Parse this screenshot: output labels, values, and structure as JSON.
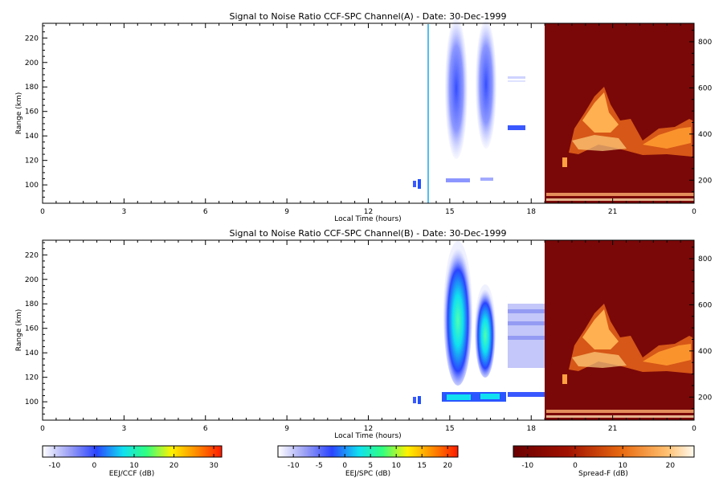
{
  "panels": [
    {
      "title": "Signal to Noise Ratio CCF-SPC Channel(A) - Date: 30-Dec-1999",
      "xlabel": "Local Time (hours)",
      "ylabel": "Range (km)",
      "x_ticks": [
        "0",
        "3",
        "6",
        "9",
        "12",
        "15",
        "18",
        "21",
        "0"
      ],
      "y_ticks": [
        "100",
        "120",
        "140",
        "160",
        "180",
        "200",
        "220"
      ],
      "right_ticks": [
        "200",
        "400",
        "600",
        "800"
      ]
    },
    {
      "title": "Signal to Noise Ratio CCF-SPC Channel(B) - Date: 30-Dec-1999",
      "xlabel": "Local Time (hours)",
      "ylabel": "Range (km)",
      "x_ticks": [
        "0",
        "3",
        "6",
        "9",
        "12",
        "15",
        "18",
        "21",
        "0"
      ],
      "y_ticks": [
        "100",
        "120",
        "140",
        "160",
        "180",
        "200",
        "220"
      ],
      "right_ticks": [
        "200",
        "400",
        "600",
        "800"
      ]
    }
  ],
  "colorbars": [
    {
      "label": "EEJ/CCF (dB)",
      "ticks": [
        "-10",
        "0",
        "10",
        "20",
        "30"
      ],
      "range": [
        -13,
        32
      ],
      "scale": "blue-cyan-yellow-red"
    },
    {
      "label": "EEJ/SPC (dB)",
      "ticks": [
        "-10",
        "-5",
        "0",
        "5",
        "10",
        "15",
        "20"
      ],
      "range": [
        -13,
        22
      ],
      "scale": "blue-cyan-yellow-red"
    },
    {
      "label": "Spread-F (dB)",
      "ticks": [
        "-10",
        "0",
        "10",
        "20"
      ],
      "range": [
        -13,
        25
      ],
      "scale": "darkred-orange-white"
    }
  ],
  "chart_data": [
    {
      "type": "heatmap",
      "title": "Signal to Noise Ratio CCF-SPC Channel(A) - Date: 30-Dec-1999",
      "xlabel": "Local Time (hours)",
      "ylabel": "Range (km)",
      "xlim": [
        0,
        24
      ],
      "ylim": [
        85,
        232
      ],
      "right_axis_range_km": [
        100,
        880
      ],
      "eej_features": [
        {
          "t0": 14.8,
          "t1": 15.4,
          "r0": 120,
          "r1": 232,
          "snr_db": -5
        },
        {
          "t0": 15.9,
          "t1": 16.6,
          "r0": 126,
          "r1": 232,
          "snr_db": -5
        },
        {
          "t0": 14.9,
          "t1": 15.7,
          "r0": 101,
          "r1": 105,
          "snr_db": -7
        },
        {
          "t0": 16.1,
          "t1": 16.5,
          "r0": 104,
          "r1": 107,
          "snr_db": -7
        },
        {
          "t0": 17.2,
          "t1": 17.8,
          "r0": 143,
          "r1": 147,
          "snr_db": -4
        },
        {
          "t0": 13.8,
          "t1": 14.0,
          "r0": 98,
          "r1": 104,
          "snr_db": -3
        }
      ],
      "vertical_line_hour": 14.2,
      "spread_f_window_hours": [
        18.5,
        24
      ]
    },
    {
      "type": "heatmap",
      "title": "Signal to Noise Ratio CCF-SPC Channel(B) - Date: 30-Dec-1999",
      "xlabel": "Local Time (hours)",
      "ylabel": "Range (km)",
      "xlim": [
        0,
        24
      ],
      "ylim": [
        85,
        232
      ],
      "right_axis_range_km": [
        100,
        880
      ],
      "eej_features": [
        {
          "t0": 14.8,
          "t1": 15.6,
          "r0": 117,
          "r1": 228,
          "snr_db": 2
        },
        {
          "t0": 16.0,
          "t1": 16.6,
          "r0": 120,
          "r1": 196,
          "snr_db": 0
        },
        {
          "t0": 14.8,
          "t1": 16.9,
          "r0": 98,
          "r1": 106,
          "snr_db": 3
        },
        {
          "t0": 17.2,
          "t1": 18.5,
          "r0": 120,
          "r1": 178,
          "snr_db": -9
        },
        {
          "t0": 17.2,
          "t1": 18.5,
          "r0": 104,
          "r1": 108,
          "snr_db": -5
        }
      ],
      "spread_f_window_hours": [
        18.5,
        24
      ]
    }
  ]
}
